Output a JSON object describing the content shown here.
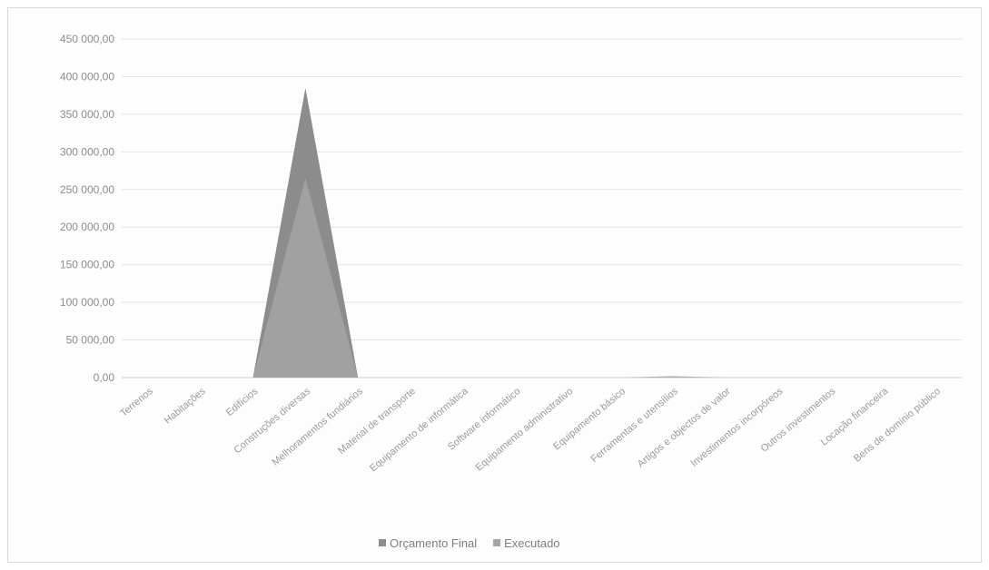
{
  "chart_data": {
    "type": "area",
    "title": "",
    "xlabel": "",
    "ylabel": "",
    "ylim": [
      0,
      450000
    ],
    "y_tick_labels": [
      "0,00",
      "50 000,00",
      "100 000,00",
      "150 000,00",
      "200 000,00",
      "250 000,00",
      "300 000,00",
      "350 000,00",
      "400 000,00",
      "450 000,00"
    ],
    "grid": true,
    "legend_position": "bottom",
    "categories": [
      "Terrenos",
      "Habitações",
      "Edifícios",
      "Construções diversas",
      "Melhoramentos fundiários",
      "Material de transporte",
      "Equipamento de informática",
      "Software informático",
      "Equipamento administrativo",
      "Equipamento básico",
      "Ferramentas e utensílios",
      "Artigos e objectos de valor",
      "Investimentos incorpóreos",
      "Outros investimentos",
      "Locação financeira",
      "Bens de domínio público"
    ],
    "series": [
      {
        "name": "Orçamento Final",
        "color": "#8c8c8c",
        "values": [
          0,
          0,
          0,
          385000,
          0,
          0,
          0,
          0,
          0,
          0,
          0,
          0,
          0,
          0,
          0,
          0
        ]
      },
      {
        "name": "Executado",
        "color": "#a5a5a5",
        "values": [
          0,
          0,
          0,
          265000,
          0,
          0,
          0,
          0,
          0,
          0,
          2000,
          0,
          0,
          0,
          0,
          0
        ]
      }
    ]
  }
}
